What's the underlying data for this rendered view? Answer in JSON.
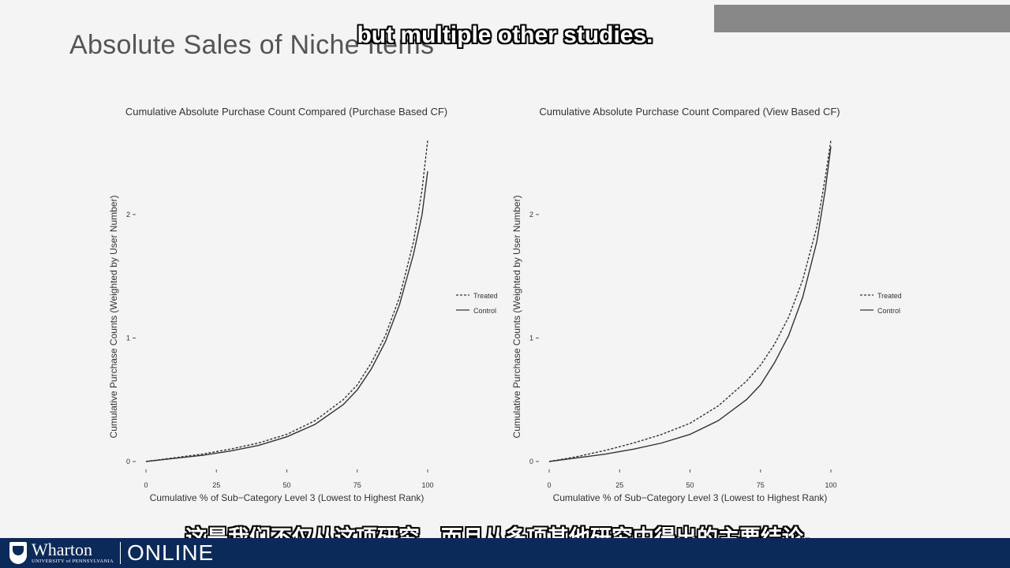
{
  "slide": {
    "title": "Absolute Sales of Niche Items"
  },
  "captions": {
    "english": "but multiple other studies.",
    "chinese": "这是我们不仅从这项研究，而且从多项其他研究中得出的主要结论。"
  },
  "footer": {
    "brand": "Wharton",
    "sub": "UNIVERSITY of PENNSYLVANIA",
    "online": "ONLINE"
  },
  "colors": {
    "footer_bg": "#0b2a5a",
    "line": "#333333",
    "background": "#f4f4f4"
  },
  "chart_data": [
    {
      "type": "line",
      "title": "Cumulative Absolute Purchase Count Compared (Purchase Based CF)",
      "xlabel": "Cumulative % of Sub−Category Level 3 (Lowest to Highest Rank)",
      "ylabel": "Cumulative Purchase Counts (Weighted by User Number)",
      "xlim": [
        0,
        100
      ],
      "ylim": [
        0,
        2.6
      ],
      "xticks": [
        "0",
        "25",
        "50",
        "75",
        "100"
      ],
      "yticks": [
        "0",
        "1",
        "2"
      ],
      "x": [
        0,
        10,
        20,
        30,
        40,
        50,
        60,
        70,
        75,
        80,
        85,
        90,
        95,
        98,
        100
      ],
      "series": [
        {
          "name": "Treated",
          "style": "dashed",
          "values": [
            0,
            0.03,
            0.06,
            0.1,
            0.15,
            0.22,
            0.33,
            0.5,
            0.62,
            0.8,
            1.02,
            1.33,
            1.78,
            2.2,
            2.6
          ]
        },
        {
          "name": "Control",
          "style": "solid",
          "values": [
            0,
            0.025,
            0.05,
            0.085,
            0.13,
            0.2,
            0.3,
            0.46,
            0.58,
            0.75,
            0.97,
            1.27,
            1.68,
            2.0,
            2.35
          ]
        }
      ],
      "legend": "right",
      "grid": false
    },
    {
      "type": "line",
      "title": "Cumulative Absolute Purchase Count Compared (View Based CF)",
      "xlabel": "Cumulative % of Sub−Category Level 3 (Lowest to Highest Rank)",
      "ylabel": "Cumulative Purchase Counts (Weighted by User Number)",
      "xlim": [
        0,
        100
      ],
      "ylim": [
        0,
        2.6
      ],
      "xticks": [
        "0",
        "25",
        "50",
        "75",
        "100"
      ],
      "yticks": [
        "0",
        "1",
        "2"
      ],
      "x": [
        0,
        10,
        20,
        30,
        40,
        50,
        60,
        70,
        75,
        80,
        85,
        90,
        95,
        98,
        100
      ],
      "series": [
        {
          "name": "Treated",
          "style": "dashed",
          "values": [
            0,
            0.04,
            0.09,
            0.15,
            0.22,
            0.31,
            0.45,
            0.65,
            0.78,
            0.95,
            1.17,
            1.47,
            1.9,
            2.3,
            2.6
          ]
        },
        {
          "name": "Control",
          "style": "solid",
          "values": [
            0,
            0.03,
            0.06,
            0.1,
            0.15,
            0.22,
            0.33,
            0.5,
            0.62,
            0.8,
            1.02,
            1.33,
            1.78,
            2.2,
            2.55
          ]
        }
      ],
      "legend": "right",
      "grid": false
    }
  ]
}
